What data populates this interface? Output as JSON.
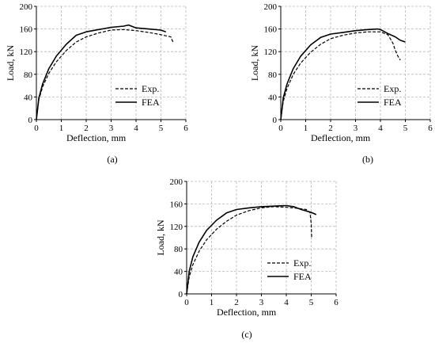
{
  "chart_data": [
    {
      "panel_label": "(a)",
      "type": "line",
      "xlabel": "Deflection, mm",
      "ylabel": "Load, kN",
      "xlim": [
        0,
        6
      ],
      "ylim": [
        0,
        200
      ],
      "xticks": [
        "0",
        "1",
        "2",
        "3",
        "4",
        "5",
        "6"
      ],
      "yticks": [
        "0",
        "40",
        "80",
        "120",
        "160",
        "200"
      ],
      "grid": true,
      "grid_style": "dashed",
      "legend_position": "bottom-right",
      "series": [
        {
          "name": "Exp.",
          "style": "dashed",
          "x": [
            0,
            0.1,
            0.25,
            0.5,
            0.8,
            1.2,
            1.6,
            2.0,
            2.5,
            3.0,
            3.5,
            4.0,
            4.5,
            5.0,
            5.2,
            5.4,
            5.45,
            5.5
          ],
          "y": [
            0,
            35,
            58,
            82,
            102,
            122,
            137,
            146,
            153,
            158,
            159,
            157,
            154,
            150,
            148,
            146,
            140,
            136
          ]
        },
        {
          "name": "FEA",
          "style": "solid",
          "x": [
            0,
            0.1,
            0.25,
            0.5,
            0.8,
            1.2,
            1.6,
            2.0,
            2.5,
            3.0,
            3.5,
            3.7,
            4.0,
            4.5,
            5.0,
            5.2
          ],
          "y": [
            0,
            38,
            63,
            90,
            112,
            133,
            149,
            155,
            159,
            163,
            165,
            167,
            162,
            160,
            158,
            155
          ]
        }
      ]
    },
    {
      "panel_label": "(b)",
      "type": "line",
      "xlabel": "Deflection, mm",
      "ylabel": "Load, kN",
      "xlim": [
        0,
        6
      ],
      "ylim": [
        0,
        200
      ],
      "xticks": [
        "0",
        "1",
        "2",
        "3",
        "4",
        "5",
        "6"
      ],
      "yticks": [
        "0",
        "40",
        "80",
        "120",
        "160",
        "200"
      ],
      "grid": true,
      "grid_style": "dashed",
      "legend_position": "bottom-right",
      "series": [
        {
          "name": "Exp.",
          "style": "dashed",
          "x": [
            0,
            0.1,
            0.25,
            0.5,
            0.8,
            1.2,
            1.6,
            2.0,
            2.5,
            3.0,
            3.5,
            4.0,
            4.3,
            4.5,
            4.6,
            4.7,
            4.8
          ],
          "y": [
            0,
            32,
            55,
            80,
            100,
            119,
            133,
            143,
            149,
            153,
            155,
            155,
            150,
            135,
            122,
            112,
            105
          ]
        },
        {
          "name": "FEA",
          "style": "solid",
          "x": [
            0,
            0.1,
            0.25,
            0.5,
            0.8,
            1.2,
            1.6,
            2.0,
            2.5,
            3.0,
            3.5,
            3.9,
            4.0,
            4.3,
            4.6,
            4.8,
            5.0
          ],
          "y": [
            0,
            38,
            63,
            90,
            112,
            132,
            145,
            151,
            154,
            157,
            159,
            160,
            159,
            152,
            146,
            140,
            137
          ]
        }
      ]
    },
    {
      "panel_label": "(c)",
      "type": "line",
      "xlabel": "Deflection, mm",
      "ylabel": "Load, kN",
      "xlim": [
        0,
        6
      ],
      "ylim": [
        0,
        200
      ],
      "xticks": [
        "0",
        "1",
        "2",
        "3",
        "4",
        "5",
        "6"
      ],
      "yticks": [
        "0",
        "40",
        "80",
        "120",
        "160",
        "200"
      ],
      "grid": true,
      "grid_style": "dashed",
      "legend_position": "bottom-right",
      "series": [
        {
          "name": "Exp.",
          "style": "dashed",
          "x": [
            0,
            0.1,
            0.25,
            0.5,
            0.8,
            1.2,
            1.6,
            2.0,
            2.5,
            3.0,
            3.5,
            4.0,
            4.5,
            4.8,
            4.95,
            5.0,
            5.02
          ],
          "y": [
            0,
            30,
            52,
            76,
            96,
            115,
            129,
            140,
            148,
            153,
            155,
            154,
            152,
            150,
            145,
            125,
            98
          ]
        },
        {
          "name": "FEA",
          "style": "solid",
          "x": [
            0,
            0.1,
            0.25,
            0.5,
            0.8,
            1.2,
            1.6,
            2.0,
            2.5,
            3.0,
            3.5,
            4.0,
            4.3,
            4.6,
            5.0,
            5.2
          ],
          "y": [
            0,
            40,
            66,
            92,
            113,
            131,
            144,
            150,
            153,
            155,
            156,
            157,
            155,
            150,
            145,
            141
          ]
        }
      ]
    }
  ]
}
